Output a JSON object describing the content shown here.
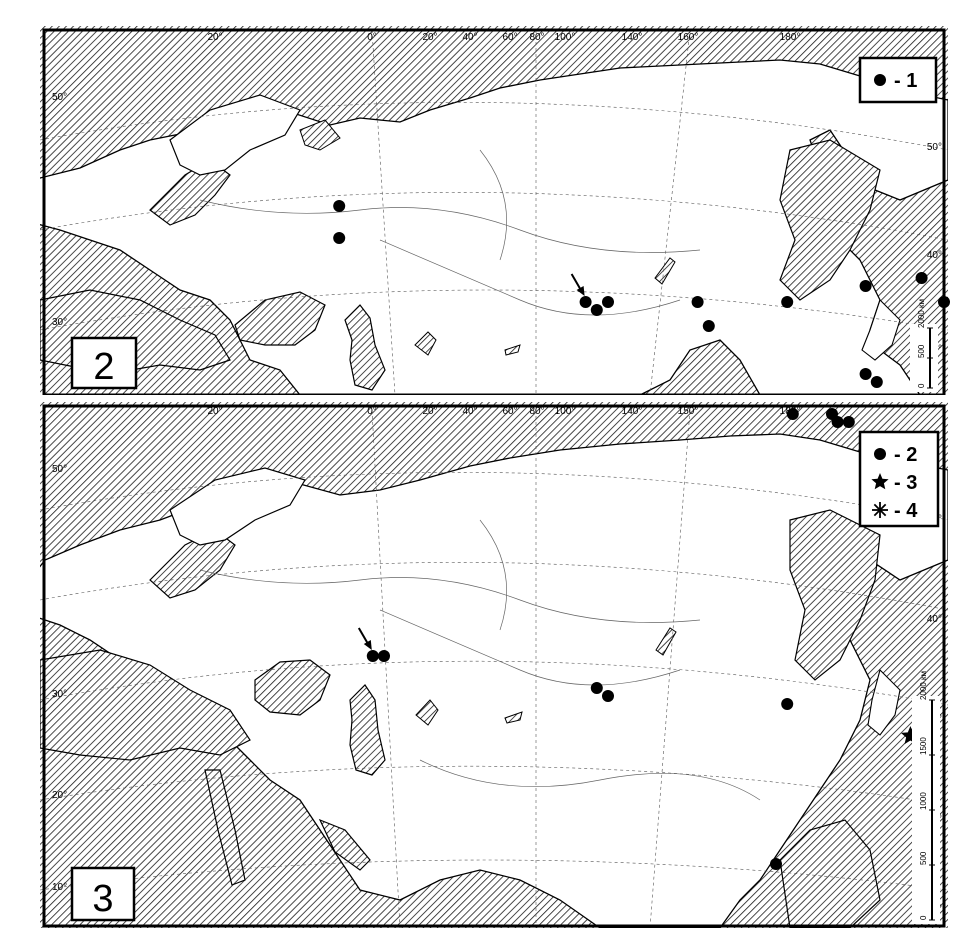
{
  "colors": {
    "land": "#ffffff",
    "hatch": "#1a1a1a",
    "ink": "#000000",
    "shade": "#7a7a7a"
  },
  "panels": [
    {
      "id": "2",
      "label": "2",
      "top_lon_labels": [
        "20°",
        "0°",
        "20°",
        "40°",
        "60°",
        "80°",
        "100°",
        "140°",
        "160°",
        "180°"
      ],
      "left_lat_labels": [
        "50°",
        "30°"
      ],
      "right_lat_labels": [
        "50°",
        "40°",
        "30°"
      ],
      "legend": [
        {
          "symbol": "dot",
          "text": "- 1"
        }
      ],
      "scale_labels": [
        "0",
        "500",
        "2000 км"
      ],
      "markers": [
        {
          "type": "dot",
          "lon": -8,
          "lat": 43
        },
        {
          "type": "dot",
          "lon": -8,
          "lat": 41
        },
        {
          "type": "dot",
          "lon": 36,
          "lat": 37
        },
        {
          "type": "dot",
          "lon": 38,
          "lat": 36.5
        },
        {
          "type": "dot",
          "lon": 40,
          "lat": 37
        },
        {
          "type": "dot",
          "lon": 56,
          "lat": 37
        },
        {
          "type": "dot",
          "lon": 58,
          "lat": 35.5
        },
        {
          "type": "dot",
          "lon": 72,
          "lat": 37
        },
        {
          "type": "dot",
          "lon": 86,
          "lat": 38
        },
        {
          "type": "dot",
          "lon": 96,
          "lat": 38.5
        },
        {
          "type": "dot",
          "lon": 100,
          "lat": 37
        },
        {
          "type": "dot",
          "lon": 86,
          "lat": 32.5
        },
        {
          "type": "dot",
          "lon": 88,
          "lat": 32
        },
        {
          "type": "dot",
          "lon": 73,
          "lat": 30
        },
        {
          "type": "dot",
          "lon": 80,
          "lat": 30
        },
        {
          "type": "dot",
          "lon": 81,
          "lat": 29.5
        },
        {
          "type": "dot",
          "lon": 83,
          "lat": 29.5
        }
      ],
      "arrows": [
        {
          "lon": 36,
          "lat": 37
        }
      ]
    },
    {
      "id": "3",
      "label": "3",
      "top_lon_labels": [
        "20°",
        "0°",
        "20°",
        "40°",
        "60°",
        "80°",
        "100°",
        "140°",
        "150°",
        "180°"
      ],
      "left_lat_labels": [
        "50°",
        "30°",
        "20°",
        "10°"
      ],
      "right_lat_labels": [
        "50°",
        "40°",
        "30°",
        "20°",
        "10°"
      ],
      "legend": [
        {
          "symbol": "dot",
          "text": "- 2"
        },
        {
          "symbol": "star",
          "text": "- 3"
        },
        {
          "symbol": "asterisk",
          "text": "- 4"
        }
      ],
      "scale_labels": [
        "0",
        "500",
        "1000",
        "1500",
        "2000 км"
      ],
      "markers": [
        {
          "type": "dot",
          "lon": -2,
          "lat": 38
        },
        {
          "type": "dot",
          "lon": 0,
          "lat": 38
        },
        {
          "type": "dot",
          "lon": 38,
          "lat": 36
        },
        {
          "type": "dot",
          "lon": 40,
          "lat": 35.5
        },
        {
          "type": "dot",
          "lon": 72,
          "lat": 35
        },
        {
          "type": "dot",
          "lon": 70,
          "lat": 25
        },
        {
          "type": "star",
          "lon": 94,
          "lat": 33
        },
        {
          "type": "asterisk",
          "lon": 108,
          "lat": 30
        }
      ],
      "arrows": [
        {
          "lon": -2,
          "lat": 38
        }
      ]
    }
  ]
}
